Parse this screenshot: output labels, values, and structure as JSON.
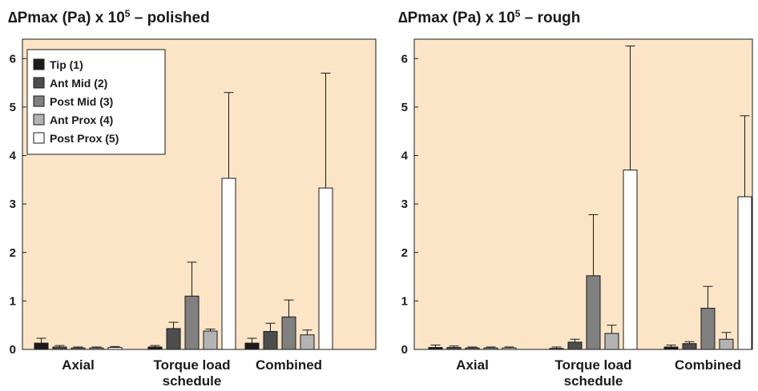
{
  "chart_data": [
    {
      "type": "bar",
      "title_prefix": "∆Pmax (Pa) x 10",
      "title_sup": "5",
      "title_suffix": " – polished",
      "categories": [
        {
          "lines": [
            "Axial"
          ]
        },
        {
          "lines": [
            "Torque load",
            "schedule"
          ]
        },
        {
          "lines": [
            "Combined"
          ]
        }
      ],
      "yticks": [
        "0",
        "1",
        "2",
        "3",
        "4",
        "5",
        "6"
      ],
      "ylim": [
        0,
        6.4
      ],
      "legend": "top-left",
      "series": [
        {
          "name": "Tip (1)",
          "color": "#1c1c1c",
          "values": [
            0.13,
            0.05,
            0.13
          ],
          "errors": [
            0.1,
            0.03,
            0.1
          ]
        },
        {
          "name": "Ant Mid (2)",
          "color": "#4d4d4d",
          "values": [
            0.05,
            0.43,
            0.37
          ],
          "errors": [
            0.03,
            0.13,
            0.17
          ]
        },
        {
          "name": "Post Mid (3)",
          "color": "#808080",
          "values": [
            0.03,
            1.1,
            0.67
          ],
          "errors": [
            0.02,
            0.7,
            0.35
          ]
        },
        {
          "name": "Ant Prox (4)",
          "color": "#b3b3b3",
          "values": [
            0.03,
            0.38,
            0.3
          ],
          "errors": [
            0.02,
            0.04,
            0.1
          ]
        },
        {
          "name": "Post Prox (5)",
          "color": "#ffffff",
          "values": [
            0.04,
            3.53,
            3.33
          ],
          "errors": [
            0.02,
            1.77,
            2.37
          ]
        }
      ]
    },
    {
      "type": "bar",
      "title_prefix": "∆Pmax (Pa) x 10",
      "title_sup": "5",
      "title_suffix": " – rough",
      "categories": [
        {
          "lines": [
            "Axial"
          ]
        },
        {
          "lines": [
            "Torque load",
            "schedule"
          ]
        },
        {
          "lines": [
            "Combined"
          ]
        }
      ],
      "yticks": [
        "0",
        "1",
        "2",
        "3",
        "4",
        "5",
        "6"
      ],
      "ylim": [
        0,
        6.4
      ],
      "series": [
        {
          "name": "Tip (1)",
          "color": "#1c1c1c",
          "values": [
            0.04,
            0.02,
            0.05
          ],
          "errors": [
            0.05,
            0.03,
            0.04
          ]
        },
        {
          "name": "Ant Mid (2)",
          "color": "#4d4d4d",
          "values": [
            0.04,
            0.15,
            0.12
          ],
          "errors": [
            0.03,
            0.06,
            0.04
          ]
        },
        {
          "name": "Post Mid (3)",
          "color": "#808080",
          "values": [
            0.03,
            1.52,
            0.85
          ],
          "errors": [
            0.02,
            1.26,
            0.45
          ]
        },
        {
          "name": "Ant Prox (4)",
          "color": "#b3b3b3",
          "values": [
            0.03,
            0.33,
            0.21
          ],
          "errors": [
            0.02,
            0.17,
            0.14
          ]
        },
        {
          "name": "Post Prox (5)",
          "color": "#ffffff",
          "values": [
            0.03,
            3.7,
            3.15
          ],
          "errors": [
            0.02,
            2.56,
            1.67
          ]
        }
      ]
    }
  ]
}
